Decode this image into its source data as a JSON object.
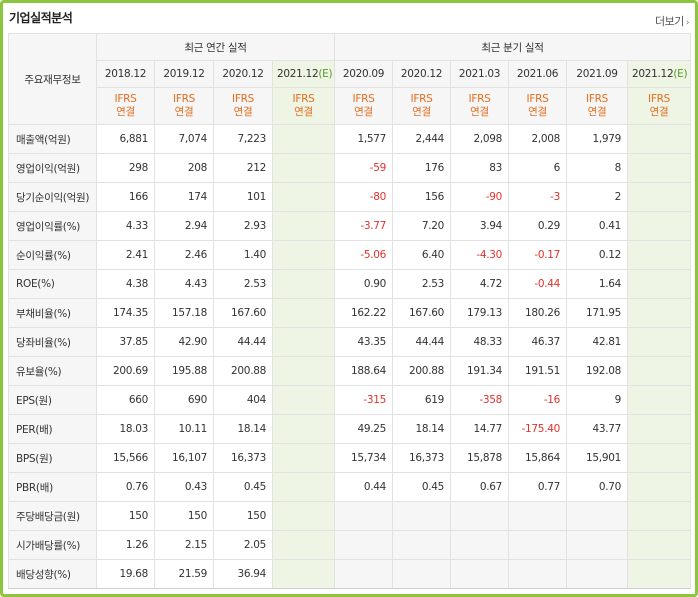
{
  "panel": {
    "title": "기업실적분석",
    "more_label": "더보기",
    "more_icon": "chevron-right-icon"
  },
  "header": {
    "row_label": "주요재무정보",
    "annual_group": "최근 연간 실적",
    "quarter_group": "최근 분기 실적",
    "annual_periods": [
      "2018.12",
      "2019.12",
      "2020.12",
      "2021.12"
    ],
    "annual_estimate_flag": [
      false,
      false,
      false,
      true
    ],
    "quarter_periods": [
      "2020.09",
      "2020.12",
      "2021.03",
      "2021.06",
      "2021.09",
      "2021.12"
    ],
    "quarter_estimate_flag": [
      false,
      false,
      false,
      false,
      false,
      true
    ],
    "estimate_mark": "(E)",
    "basis_line1": "IFRS",
    "basis_line2": "연결"
  },
  "colors": {
    "border": "#8cc63e",
    "negative": "#e0322b",
    "ifrs": "#e36c1e",
    "estimate_bg": "#eef5e4"
  },
  "rows": [
    {
      "name": "매출액(억원)",
      "annual": [
        "6,881",
        "7,074",
        "7,223",
        ""
      ],
      "quarter": [
        "1,577",
        "2,444",
        "2,098",
        "2,008",
        "1,979",
        ""
      ]
    },
    {
      "name": "영업이익(억원)",
      "annual": [
        "298",
        "208",
        "212",
        ""
      ],
      "quarter": [
        "-59",
        "176",
        "83",
        "6",
        "8",
        ""
      ]
    },
    {
      "name": "당기순이익(억원)",
      "annual": [
        "166",
        "174",
        "101",
        ""
      ],
      "quarter": [
        "-80",
        "156",
        "-90",
        "-3",
        "2",
        ""
      ]
    },
    {
      "name": "영업이익률(%)",
      "annual": [
        "4.33",
        "2.94",
        "2.93",
        ""
      ],
      "quarter": [
        "-3.77",
        "7.20",
        "3.94",
        "0.29",
        "0.41",
        ""
      ]
    },
    {
      "name": "순이익률(%)",
      "annual": [
        "2.41",
        "2.46",
        "1.40",
        ""
      ],
      "quarter": [
        "-5.06",
        "6.40",
        "-4.30",
        "-0.17",
        "0.12",
        ""
      ]
    },
    {
      "name": "ROE(%)",
      "annual": [
        "4.38",
        "4.43",
        "2.53",
        ""
      ],
      "quarter": [
        "0.90",
        "2.53",
        "4.72",
        "-0.44",
        "1.64",
        ""
      ]
    },
    {
      "name": "부채비율(%)",
      "annual": [
        "174.35",
        "157.18",
        "167.60",
        ""
      ],
      "quarter": [
        "162.22",
        "167.60",
        "179.13",
        "180.26",
        "171.95",
        ""
      ]
    },
    {
      "name": "당좌비율(%)",
      "annual": [
        "37.85",
        "42.90",
        "44.44",
        ""
      ],
      "quarter": [
        "43.35",
        "44.44",
        "48.33",
        "46.37",
        "42.81",
        ""
      ]
    },
    {
      "name": "유보율(%)",
      "annual": [
        "200.69",
        "195.88",
        "200.88",
        ""
      ],
      "quarter": [
        "188.64",
        "200.88",
        "191.34",
        "191.51",
        "192.08",
        ""
      ]
    },
    {
      "name": "EPS(원)",
      "annual": [
        "660",
        "690",
        "404",
        ""
      ],
      "quarter": [
        "-315",
        "619",
        "-358",
        "-16",
        "9",
        ""
      ]
    },
    {
      "name": "PER(배)",
      "annual": [
        "18.03",
        "10.11",
        "18.14",
        ""
      ],
      "quarter": [
        "49.25",
        "18.14",
        "14.77",
        "-175.40",
        "43.77",
        ""
      ]
    },
    {
      "name": "BPS(원)",
      "annual": [
        "15,566",
        "16,107",
        "16,373",
        ""
      ],
      "quarter": [
        "15,734",
        "16,373",
        "15,878",
        "15,864",
        "15,901",
        ""
      ]
    },
    {
      "name": "PBR(배)",
      "annual": [
        "0.76",
        "0.43",
        "0.45",
        ""
      ],
      "quarter": [
        "0.44",
        "0.45",
        "0.67",
        "0.77",
        "0.70",
        ""
      ]
    },
    {
      "name": "주당배당금(원)",
      "annual": [
        "150",
        "150",
        "150",
        ""
      ],
      "quarter": [
        "",
        "",
        "",
        "",
        "",
        ""
      ]
    },
    {
      "name": "시가배당률(%)",
      "annual": [
        "1.26",
        "2.15",
        "2.05",
        ""
      ],
      "quarter": [
        "",
        "",
        "",
        "",
        "",
        ""
      ]
    },
    {
      "name": "배당성향(%)",
      "annual": [
        "19.68",
        "21.59",
        "36.94",
        ""
      ],
      "quarter": [
        "",
        "",
        "",
        "",
        "",
        ""
      ]
    }
  ]
}
